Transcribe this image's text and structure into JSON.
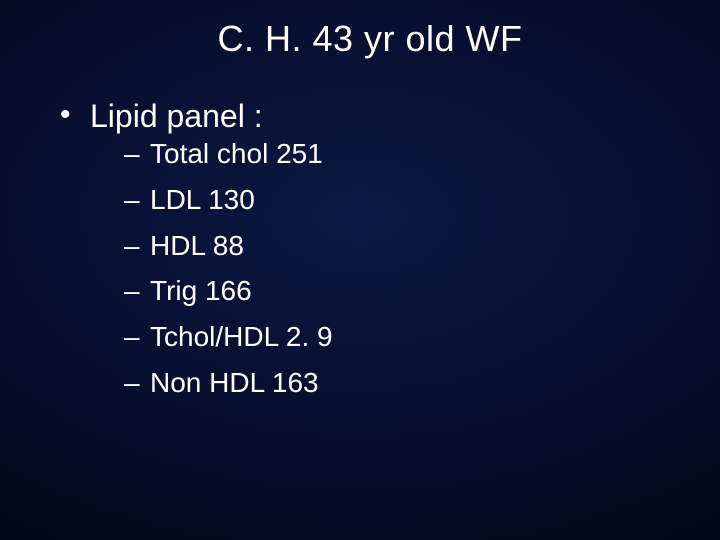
{
  "slide": {
    "background": {
      "gradient_center": "#0c1844",
      "gradient_mid": "#050b26",
      "gradient_edge": "#000000"
    },
    "text_color": "#ffffff",
    "title": {
      "text": "C. H.  43 yr old WF",
      "font_size_pt": 36,
      "font_weight": "normal",
      "align": "center"
    },
    "bullets": [
      {
        "label": "Lipid panel :",
        "font_size_pt": 32,
        "marker": "•",
        "sub": [
          {
            "label": "Total chol 251",
            "marker": "–"
          },
          {
            "label": "LDL 130",
            "marker": "–"
          },
          {
            "label": "HDL 88",
            "marker": "–"
          },
          {
            "label": "Trig 166",
            "marker": "–"
          },
          {
            "label": "Tchol/HDL 2. 9",
            "marker": "–"
          },
          {
            "label": "Non HDL 163",
            "marker": "–"
          }
        ],
        "sub_font_size_pt": 28
      }
    ]
  }
}
